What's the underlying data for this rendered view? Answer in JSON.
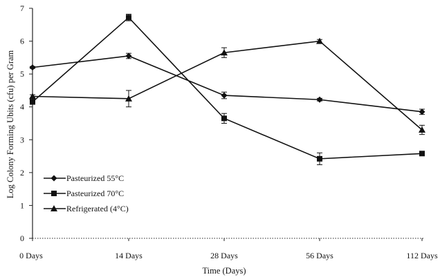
{
  "chart_data": {
    "type": "line",
    "title": "",
    "xlabel": "Time (Days)",
    "ylabel": "Log Colony Forming Ubits (cfu) per Gram",
    "categories": [
      "0 Days",
      "14 Days",
      "28 Days",
      "56 Days",
      "112 Days"
    ],
    "ylim": [
      0,
      7
    ],
    "yticks": [
      0,
      1,
      2,
      3,
      4,
      5,
      6,
      7
    ],
    "grid": false,
    "legend_position": "bottom-left",
    "series": [
      {
        "name": "Pasteurized 55°C",
        "marker": "diamond",
        "values": [
          5.2,
          5.55,
          4.35,
          4.22,
          3.85
        ],
        "errors": [
          0.03,
          0.08,
          0.1,
          0.04,
          0.08
        ]
      },
      {
        "name": "Pasteurized 70°C",
        "marker": "square",
        "values": [
          4.15,
          6.72,
          3.65,
          2.42,
          2.58
        ],
        "errors": [
          0.05,
          0.1,
          0.15,
          0.18,
          0.06
        ]
      },
      {
        "name": "Refrigerated (4°C)",
        "marker": "triangle",
        "values": [
          4.32,
          4.25,
          5.65,
          6.0,
          3.3
        ],
        "errors": [
          0.05,
          0.25,
          0.15,
          0.05,
          0.14
        ]
      }
    ],
    "colors": {
      "line": "#111111",
      "axis": "#222222"
    }
  }
}
